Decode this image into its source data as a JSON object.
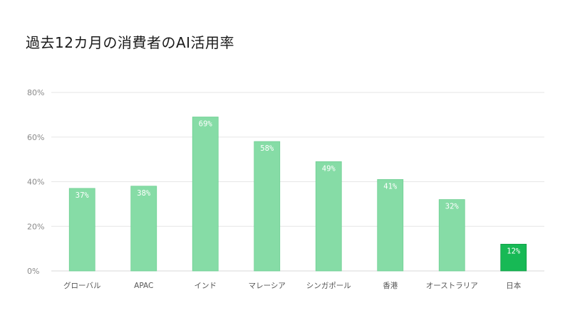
{
  "colors": {
    "bar_default": "#86dca6",
    "bar_highlight": "#17b955",
    "bar_highlight_stroke": "#0f9a43",
    "grid": "#e6e6e6",
    "tick_text": "#8a8a8a",
    "category_text": "#555555",
    "data_label_text": "#ffffff"
  },
  "chart_data": {
    "type": "bar",
    "title": "過去12カ月の消費者のAI活用率",
    "xlabel": "",
    "ylabel": "",
    "ylim": [
      0,
      80
    ],
    "yticks": [
      0,
      20,
      40,
      60,
      80
    ],
    "ytick_labels": [
      "0%",
      "20%",
      "40%",
      "60%",
      "80%"
    ],
    "grid": true,
    "legend": "none",
    "categories": [
      "グローバル",
      "APAC",
      "インド",
      "マレーシア",
      "シンガポール",
      "香港",
      "オーストラリア",
      "日本"
    ],
    "values": [
      37,
      38,
      69,
      58,
      49,
      41,
      32,
      12
    ],
    "data_labels": [
      "37%",
      "38%",
      "69%",
      "58%",
      "49%",
      "41%",
      "32%",
      "12%"
    ],
    "highlight_category": "日本"
  }
}
